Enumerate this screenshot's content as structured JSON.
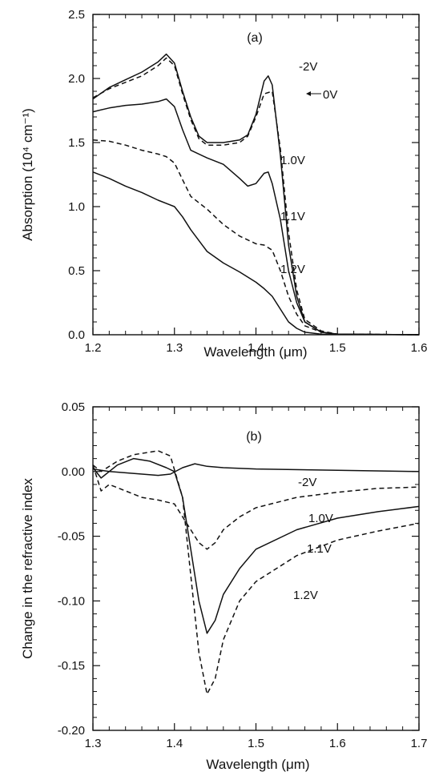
{
  "chart_data": [
    {
      "type": "line",
      "panel_label": "(a)",
      "xlabel": "Wavelength (μm)",
      "ylabel": "Absorption (10⁴ cm⁻¹)",
      "xlim": [
        1.2,
        1.6
      ],
      "ylim": [
        0.0,
        2.5
      ],
      "x_ticks": [
        "1.2",
        "1.3",
        "1.4",
        "1.5",
        "1.6"
      ],
      "y_ticks": [
        "0.0",
        "0.5",
        "1.0",
        "1.5",
        "2.0",
        "2.5"
      ],
      "grid": false,
      "series": [
        {
          "name": "-2V",
          "style": "solid",
          "points": [
            [
              1.2,
              1.84
            ],
            [
              1.22,
              1.93
            ],
            [
              1.24,
              1.99
            ],
            [
              1.26,
              2.05
            ],
            [
              1.28,
              2.13
            ],
            [
              1.29,
              2.19
            ],
            [
              1.3,
              2.12
            ],
            [
              1.31,
              1.9
            ],
            [
              1.32,
              1.7
            ],
            [
              1.33,
              1.55
            ],
            [
              1.34,
              1.5
            ],
            [
              1.36,
              1.5
            ],
            [
              1.38,
              1.52
            ],
            [
              1.39,
              1.56
            ],
            [
              1.4,
              1.72
            ],
            [
              1.41,
              1.98
            ],
            [
              1.415,
              2.02
            ],
            [
              1.42,
              1.95
            ],
            [
              1.43,
              1.4
            ],
            [
              1.44,
              0.7
            ],
            [
              1.45,
              0.3
            ],
            [
              1.46,
              0.1
            ],
            [
              1.48,
              0.02
            ],
            [
              1.5,
              0.005
            ],
            [
              1.6,
              0.0
            ]
          ]
        },
        {
          "name": "0V",
          "style": "dashed",
          "points": [
            [
              1.2,
              1.85
            ],
            [
              1.22,
              1.92
            ],
            [
              1.24,
              1.97
            ],
            [
              1.26,
              2.02
            ],
            [
              1.28,
              2.1
            ],
            [
              1.29,
              2.16
            ],
            [
              1.3,
              2.1
            ],
            [
              1.31,
              1.88
            ],
            [
              1.32,
              1.68
            ],
            [
              1.33,
              1.53
            ],
            [
              1.34,
              1.48
            ],
            [
              1.36,
              1.48
            ],
            [
              1.38,
              1.5
            ],
            [
              1.39,
              1.55
            ],
            [
              1.4,
              1.7
            ],
            [
              1.41,
              1.88
            ],
            [
              1.42,
              1.9
            ],
            [
              1.43,
              1.45
            ],
            [
              1.44,
              0.8
            ],
            [
              1.45,
              0.35
            ],
            [
              1.46,
              0.12
            ],
            [
              1.48,
              0.03
            ],
            [
              1.5,
              0.005
            ],
            [
              1.6,
              0.0
            ]
          ]
        },
        {
          "name": "1.0V",
          "style": "solid",
          "points": [
            [
              1.2,
              1.74
            ],
            [
              1.22,
              1.77
            ],
            [
              1.24,
              1.79
            ],
            [
              1.26,
              1.8
            ],
            [
              1.28,
              1.82
            ],
            [
              1.29,
              1.84
            ],
            [
              1.3,
              1.78
            ],
            [
              1.31,
              1.6
            ],
            [
              1.32,
              1.44
            ],
            [
              1.34,
              1.38
            ],
            [
              1.36,
              1.33
            ],
            [
              1.38,
              1.22
            ],
            [
              1.39,
              1.16
            ],
            [
              1.4,
              1.18
            ],
            [
              1.41,
              1.26
            ],
            [
              1.415,
              1.27
            ],
            [
              1.42,
              1.18
            ],
            [
              1.43,
              0.9
            ],
            [
              1.44,
              0.5
            ],
            [
              1.45,
              0.25
            ],
            [
              1.46,
              0.1
            ],
            [
              1.48,
              0.02
            ],
            [
              1.5,
              0.005
            ],
            [
              1.6,
              0.0
            ]
          ]
        },
        {
          "name": "1.1V",
          "style": "dashed",
          "points": [
            [
              1.2,
              1.52
            ],
            [
              1.22,
              1.51
            ],
            [
              1.24,
              1.48
            ],
            [
              1.26,
              1.44
            ],
            [
              1.28,
              1.41
            ],
            [
              1.29,
              1.39
            ],
            [
              1.3,
              1.34
            ],
            [
              1.31,
              1.21
            ],
            [
              1.32,
              1.08
            ],
            [
              1.34,
              0.98
            ],
            [
              1.36,
              0.86
            ],
            [
              1.38,
              0.77
            ],
            [
              1.4,
              0.71
            ],
            [
              1.41,
              0.7
            ],
            [
              1.42,
              0.66
            ],
            [
              1.43,
              0.5
            ],
            [
              1.44,
              0.3
            ],
            [
              1.45,
              0.16
            ],
            [
              1.46,
              0.07
            ],
            [
              1.48,
              0.02
            ],
            [
              1.5,
              0.005
            ],
            [
              1.6,
              0.0
            ]
          ]
        },
        {
          "name": "1.2V",
          "style": "solid",
          "points": [
            [
              1.2,
              1.27
            ],
            [
              1.22,
              1.22
            ],
            [
              1.24,
              1.16
            ],
            [
              1.26,
              1.11
            ],
            [
              1.28,
              1.05
            ],
            [
              1.3,
              1.0
            ],
            [
              1.31,
              0.92
            ],
            [
              1.32,
              0.82
            ],
            [
              1.34,
              0.65
            ],
            [
              1.36,
              0.56
            ],
            [
              1.38,
              0.49
            ],
            [
              1.4,
              0.41
            ],
            [
              1.41,
              0.36
            ],
            [
              1.42,
              0.3
            ],
            [
              1.43,
              0.2
            ],
            [
              1.44,
              0.1
            ],
            [
              1.45,
              0.05
            ],
            [
              1.46,
              0.02
            ],
            [
              1.48,
              0.005
            ],
            [
              1.6,
              0.0
            ]
          ]
        }
      ],
      "annotations": [
        "-2V",
        "0V",
        "1.0V",
        "1.1V",
        "1.2V"
      ]
    },
    {
      "type": "line",
      "panel_label": "(b)",
      "xlabel": "Wavelength (μm)",
      "ylabel": "Change in the refractive index",
      "xlim": [
        1.3,
        1.7
      ],
      "ylim": [
        -0.2,
        0.05
      ],
      "x_ticks": [
        "1.3",
        "1.4",
        "1.5",
        "1.6",
        "1.7"
      ],
      "y_ticks": [
        "0.05",
        "0.00",
        "-0.05",
        "-0.10",
        "-0.15",
        "-0.20"
      ],
      "grid": false,
      "series": [
        {
          "name": "-2V",
          "style": "solid",
          "points": [
            [
              1.3,
              0.002
            ],
            [
              1.32,
              0.0
            ],
            [
              1.34,
              -0.001
            ],
            [
              1.36,
              -0.002
            ],
            [
              1.38,
              -0.003
            ],
            [
              1.395,
              -0.002
            ],
            [
              1.41,
              0.003
            ],
            [
              1.425,
              0.006
            ],
            [
              1.44,
              0.004
            ],
            [
              1.46,
              0.003
            ],
            [
              1.5,
              0.002
            ],
            [
              1.6,
              0.001
            ],
            [
              1.7,
              0.0
            ]
          ]
        },
        {
          "name": "1.0V",
          "style": "dashed",
          "points": [
            [
              1.3,
              0.005
            ],
            [
              1.31,
              -0.015
            ],
            [
              1.32,
              -0.01
            ],
            [
              1.34,
              -0.015
            ],
            [
              1.36,
              -0.02
            ],
            [
              1.38,
              -0.022
            ],
            [
              1.4,
              -0.025
            ],
            [
              1.42,
              -0.045
            ],
            [
              1.43,
              -0.055
            ],
            [
              1.44,
              -0.06
            ],
            [
              1.45,
              -0.055
            ],
            [
              1.46,
              -0.045
            ],
            [
              1.48,
              -0.035
            ],
            [
              1.5,
              -0.028
            ],
            [
              1.55,
              -0.02
            ],
            [
              1.6,
              -0.016
            ],
            [
              1.65,
              -0.013
            ],
            [
              1.7,
              -0.012
            ]
          ]
        },
        {
          "name": "1.1V",
          "style": "solid",
          "points": [
            [
              1.3,
              0.003
            ],
            [
              1.31,
              -0.005
            ],
            [
              1.33,
              0.005
            ],
            [
              1.35,
              0.01
            ],
            [
              1.37,
              0.008
            ],
            [
              1.39,
              0.003
            ],
            [
              1.4,
              0.0
            ],
            [
              1.41,
              -0.02
            ],
            [
              1.42,
              -0.06
            ],
            [
              1.43,
              -0.1
            ],
            [
              1.44,
              -0.125
            ],
            [
              1.45,
              -0.115
            ],
            [
              1.46,
              -0.095
            ],
            [
              1.48,
              -0.075
            ],
            [
              1.5,
              -0.06
            ],
            [
              1.55,
              -0.045
            ],
            [
              1.6,
              -0.036
            ],
            [
              1.65,
              -0.031
            ],
            [
              1.7,
              -0.027
            ]
          ]
        },
        {
          "name": "1.2V",
          "style": "dashed",
          "points": [
            [
              1.3,
              0.005
            ],
            [
              1.31,
              0.0
            ],
            [
              1.33,
              0.008
            ],
            [
              1.35,
              0.013
            ],
            [
              1.38,
              0.016
            ],
            [
              1.395,
              0.012
            ],
            [
              1.41,
              -0.02
            ],
            [
              1.42,
              -0.08
            ],
            [
              1.43,
              -0.14
            ],
            [
              1.44,
              -0.172
            ],
            [
              1.45,
              -0.16
            ],
            [
              1.46,
              -0.13
            ],
            [
              1.48,
              -0.1
            ],
            [
              1.5,
              -0.085
            ],
            [
              1.55,
              -0.065
            ],
            [
              1.6,
              -0.053
            ],
            [
              1.65,
              -0.046
            ],
            [
              1.7,
              -0.04
            ]
          ]
        }
      ],
      "annotations": [
        "-2V",
        "1.0V",
        "1.1V",
        "1.2V"
      ]
    }
  ]
}
